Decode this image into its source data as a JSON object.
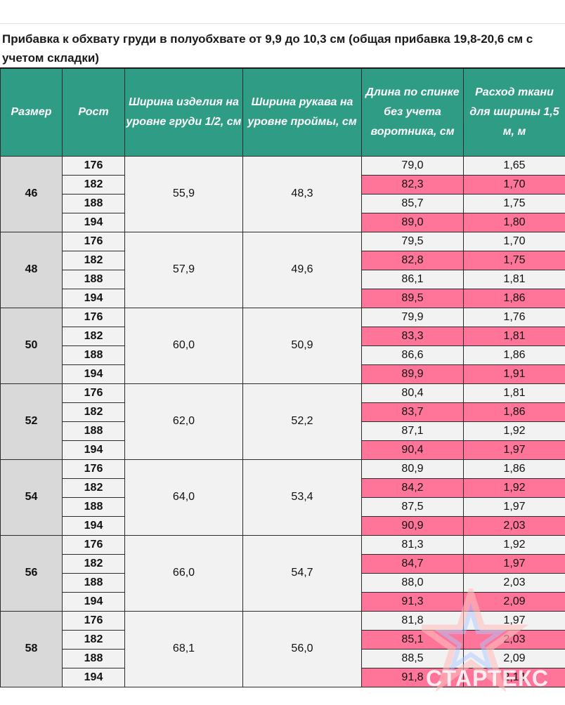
{
  "caption": "Прибавка к обхвату груди в полуобхвате от 9,9 до 10,3 см (общая прибавка 19,8-20,6 см с учетом складки)",
  "columns": [
    "Размер",
    "Рост",
    "Ширина изделия на уровне груди 1/2, см",
    "Ширина рукава на уровне проймы, см",
    "Длина по спинке без учета воротника, см",
    "Расход ткани для ширины 1,5 м, м"
  ],
  "groups": [
    {
      "size": "46",
      "chest_width": "55,9",
      "sleeve_width": "48,3",
      "rows": [
        {
          "height": "176",
          "back_length": "79,0",
          "fabric": "1,65"
        },
        {
          "height": "182",
          "back_length": "82,3",
          "fabric": "1,70"
        },
        {
          "height": "188",
          "back_length": "85,7",
          "fabric": "1,75"
        },
        {
          "height": "194",
          "back_length": "89,0",
          "fabric": "1,80"
        }
      ]
    },
    {
      "size": "48",
      "chest_width": "57,9",
      "sleeve_width": "49,6",
      "rows": [
        {
          "height": "176",
          "back_length": "79,5",
          "fabric": "1,70"
        },
        {
          "height": "182",
          "back_length": "82,8",
          "fabric": "1,75"
        },
        {
          "height": "188",
          "back_length": "86,1",
          "fabric": "1,81"
        },
        {
          "height": "194",
          "back_length": "89,5",
          "fabric": "1,86"
        }
      ]
    },
    {
      "size": "50",
      "chest_width": "60,0",
      "sleeve_width": "50,9",
      "rows": [
        {
          "height": "176",
          "back_length": "79,9",
          "fabric": "1,76"
        },
        {
          "height": "182",
          "back_length": "83,3",
          "fabric": "1,81"
        },
        {
          "height": "188",
          "back_length": "86,6",
          "fabric": "1,86"
        },
        {
          "height": "194",
          "back_length": "89,9",
          "fabric": "1,91"
        }
      ]
    },
    {
      "size": "52",
      "chest_width": "62,0",
      "sleeve_width": "52,2",
      "rows": [
        {
          "height": "176",
          "back_length": "80,4",
          "fabric": "1,81"
        },
        {
          "height": "182",
          "back_length": "83,7",
          "fabric": "1,86"
        },
        {
          "height": "188",
          "back_length": "87,1",
          "fabric": "1,92"
        },
        {
          "height": "194",
          "back_length": "90,4",
          "fabric": "1,97"
        }
      ]
    },
    {
      "size": "54",
      "chest_width": "64,0",
      "sleeve_width": "53,4",
      "rows": [
        {
          "height": "176",
          "back_length": "80,9",
          "fabric": "1,86"
        },
        {
          "height": "182",
          "back_length": "84,2",
          "fabric": "1,92"
        },
        {
          "height": "188",
          "back_length": "87,5",
          "fabric": "1,97"
        },
        {
          "height": "194",
          "back_length": "90,9",
          "fabric": "2,03"
        }
      ]
    },
    {
      "size": "56",
      "chest_width": "66,0",
      "sleeve_width": "54,7",
      "rows": [
        {
          "height": "176",
          "back_length": "81,3",
          "fabric": "1,92"
        },
        {
          "height": "182",
          "back_length": "84,7",
          "fabric": "1,97"
        },
        {
          "height": "188",
          "back_length": "88,0",
          "fabric": "2,03"
        },
        {
          "height": "194",
          "back_length": "91,3",
          "fabric": "2,09"
        }
      ]
    },
    {
      "size": "58",
      "chest_width": "68,1",
      "sleeve_width": "56,0",
      "rows": [
        {
          "height": "176",
          "back_length": "81,8",
          "fabric": "1,97"
        },
        {
          "height": "182",
          "back_length": "85,1",
          "fabric": "2,03"
        },
        {
          "height": "188",
          "back_length": "88,5",
          "fabric": "2,09"
        },
        {
          "height": "194",
          "back_length": "91,8",
          "fabric": "2,14"
        }
      ]
    }
  ],
  "colors": {
    "header_bg": "#2f9c86",
    "highlight_row": "#ff7499",
    "size_cell": "#d9d9d9",
    "cell_bg": "#f2f2f2"
  },
  "watermark": {
    "text": "СТАРТЕКС",
    "icon": "star-logo-icon"
  }
}
